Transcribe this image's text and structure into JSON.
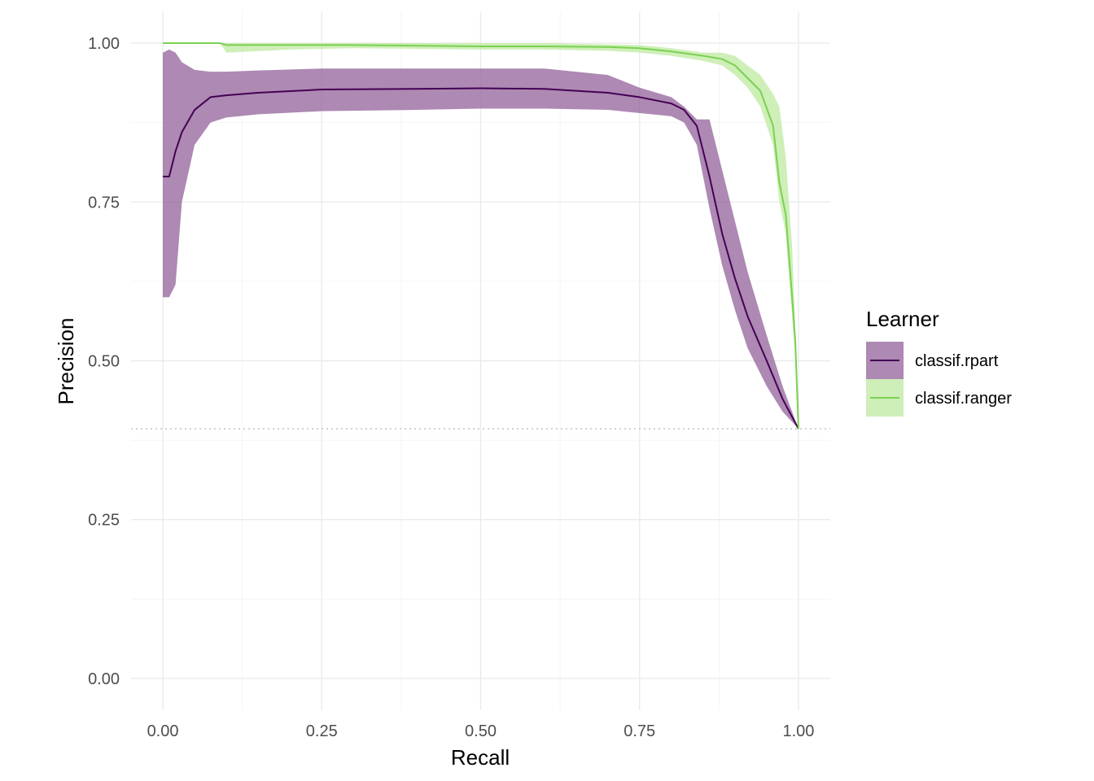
{
  "chart_data": {
    "type": "line",
    "title": "",
    "xlabel": "Recall",
    "ylabel": "Precision",
    "xlim": [
      -0.05,
      1.05
    ],
    "ylim": [
      -0.05,
      1.05
    ],
    "xticks": [
      0.0,
      0.25,
      0.5,
      0.75,
      1.0
    ],
    "xtick_labels": [
      "0.00",
      "0.25",
      "0.50",
      "0.75",
      "1.00"
    ],
    "yticks": [
      0.0,
      0.25,
      0.5,
      0.75,
      1.0
    ],
    "ytick_labels": [
      "0.00",
      "0.25",
      "0.50",
      "0.75",
      "1.00"
    ],
    "grid": true,
    "legend": {
      "title": "Learner",
      "placement": "right"
    },
    "baseline": {
      "y": 0.393,
      "style": "dotted",
      "color": "#bdbdbd"
    },
    "series": [
      {
        "name": "classif.rpart",
        "line_color": "#440154",
        "band_color": "#8d5b96",
        "x": [
          0.0,
          0.01,
          0.02,
          0.03,
          0.05,
          0.075,
          0.1,
          0.15,
          0.25,
          0.4,
          0.5,
          0.6,
          0.7,
          0.75,
          0.8,
          0.82,
          0.84,
          0.86,
          0.88,
          0.9,
          0.92,
          0.95,
          0.975,
          1.0
        ],
        "y": [
          0.79,
          0.79,
          0.83,
          0.86,
          0.895,
          0.915,
          0.918,
          0.922,
          0.927,
          0.928,
          0.929,
          0.928,
          0.922,
          0.915,
          0.905,
          0.895,
          0.87,
          0.79,
          0.7,
          0.63,
          0.57,
          0.5,
          0.44,
          0.393
        ],
        "lower": [
          0.6,
          0.6,
          0.62,
          0.75,
          0.84,
          0.875,
          0.883,
          0.888,
          0.893,
          0.895,
          0.897,
          0.897,
          0.895,
          0.89,
          0.885,
          0.875,
          0.84,
          0.74,
          0.65,
          0.58,
          0.52,
          0.46,
          0.42,
          0.393
        ],
        "upper": [
          0.985,
          0.99,
          0.985,
          0.97,
          0.958,
          0.955,
          0.955,
          0.957,
          0.96,
          0.96,
          0.96,
          0.96,
          0.95,
          0.93,
          0.915,
          0.9,
          0.88,
          0.88,
          0.8,
          0.72,
          0.64,
          0.54,
          0.46,
          0.393
        ]
      },
      {
        "name": "classif.ranger",
        "line_color": "#7ad151",
        "band_color": "#c5ecab",
        "x": [
          0.0,
          0.09,
          0.1,
          0.2,
          0.3,
          0.5,
          0.6,
          0.7,
          0.75,
          0.8,
          0.85,
          0.88,
          0.9,
          0.92,
          0.94,
          0.96,
          0.97,
          0.98,
          0.99,
          0.995,
          1.0
        ],
        "y": [
          1.0,
          1.0,
          0.997,
          0.997,
          0.997,
          0.995,
          0.995,
          0.994,
          0.992,
          0.987,
          0.98,
          0.975,
          0.965,
          0.945,
          0.925,
          0.87,
          0.78,
          0.73,
          0.6,
          0.53,
          0.393
        ],
        "lower": [
          1.0,
          1.0,
          0.985,
          0.99,
          0.992,
          0.99,
          0.99,
          0.988,
          0.985,
          0.98,
          0.972,
          0.965,
          0.95,
          0.93,
          0.9,
          0.84,
          0.75,
          0.7,
          0.57,
          0.5,
          0.393
        ],
        "upper": [
          1.0,
          1.0,
          1.0,
          1.0,
          1.0,
          1.0,
          1.0,
          0.998,
          0.997,
          0.992,
          0.985,
          0.985,
          0.98,
          0.965,
          0.95,
          0.92,
          0.9,
          0.82,
          0.68,
          0.55,
          0.393
        ]
      }
    ]
  }
}
